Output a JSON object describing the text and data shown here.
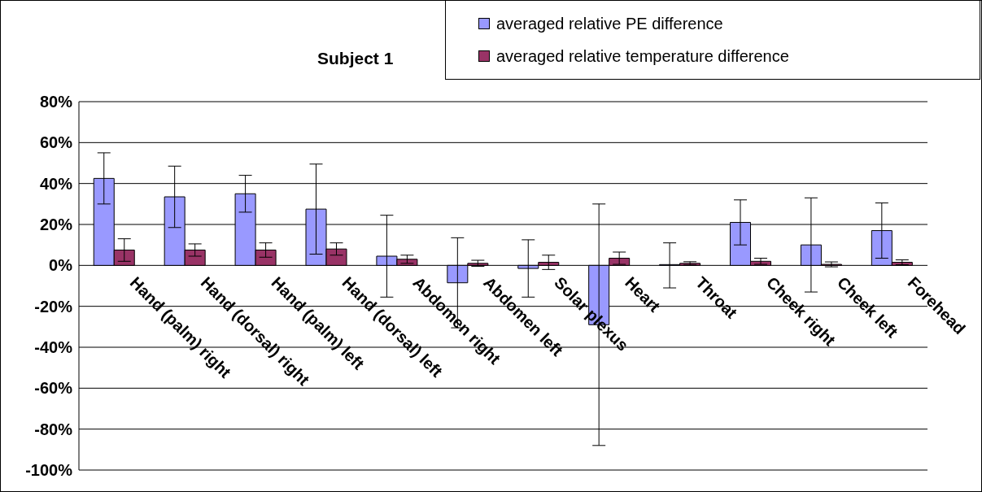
{
  "chart_data": {
    "type": "bar",
    "title": "Subject 1",
    "categories": [
      "Hand (palm) right",
      "Hand (dorsal) right",
      "Hand (palm) left",
      "Hand (dorsal) left",
      "Abdomen right",
      "Abdomen left",
      "Solar plexus",
      "Heart",
      "Throat",
      "Cheek right",
      "Cheek left",
      "Forehead"
    ],
    "series": [
      {
        "name": "averaged relative PE difference",
        "color": "#9999ff",
        "values": [
          42.5,
          33.5,
          35,
          27.5,
          4.5,
          -8.5,
          -1.5,
          -29,
          0,
          21,
          10,
          17
        ],
        "errors": [
          12.5,
          15,
          9,
          22,
          20,
          22,
          14,
          59,
          11,
          11,
          23,
          13.5
        ]
      },
      {
        "name": "averaged relative temperature difference",
        "color": "#993366",
        "values": [
          7.5,
          7.5,
          7.5,
          8,
          3,
          1,
          1.5,
          3.5,
          1,
          2,
          0.5,
          1.5
        ],
        "errors": [
          5.5,
          3,
          3.5,
          3,
          2,
          1.5,
          3.5,
          3,
          0.8,
          1.5,
          1.2,
          1.2
        ]
      }
    ],
    "ylim": [
      -100,
      80
    ],
    "yticks": [
      {
        "value": -100,
        "label": "-100%"
      },
      {
        "value": -80,
        "label": "-80%"
      },
      {
        "value": -60,
        "label": "-60%"
      },
      {
        "value": -40,
        "label": "-40%"
      },
      {
        "value": -20,
        "label": "-20%"
      },
      {
        "value": 0,
        "label": "0%"
      },
      {
        "value": 20,
        "label": "20%"
      },
      {
        "value": 40,
        "label": "40%"
      },
      {
        "value": 60,
        "label": "60%"
      },
      {
        "value": 80,
        "label": "80%"
      }
    ],
    "grid": "y",
    "legend": "top right"
  }
}
